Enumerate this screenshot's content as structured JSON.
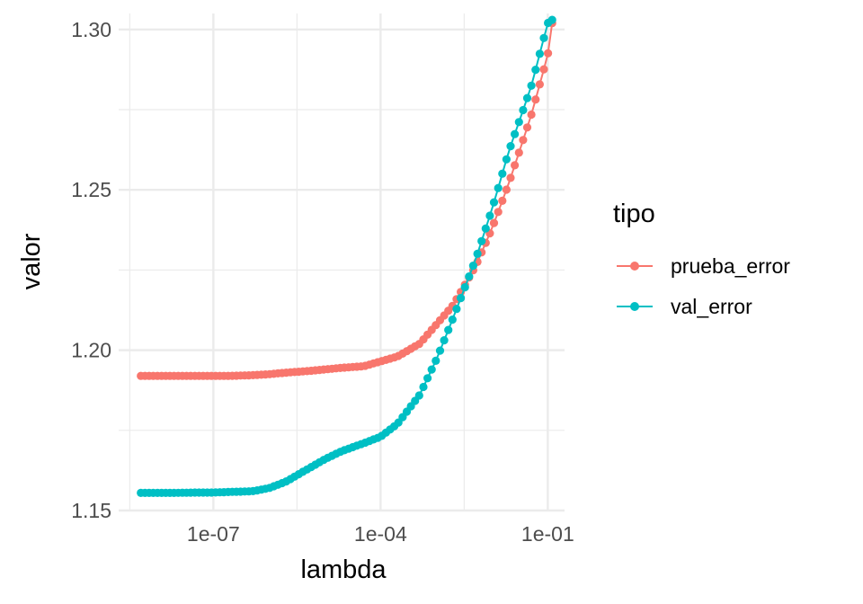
{
  "chart_data": {
    "type": "line",
    "title": "",
    "xlabel": "lambda",
    "ylabel": "valor",
    "x_scale": "log10",
    "xlim": [
      2e-09,
      0.2
    ],
    "ylim": [
      1.15,
      1.305
    ],
    "x_ticks": [
      1e-07,
      0.0001,
      0.1
    ],
    "x_tick_labels": [
      "1e-07",
      "1e-04",
      "1e-01"
    ],
    "y_ticks": [
      1.15,
      1.2,
      1.25,
      1.3
    ],
    "y_tick_labels": [
      "1.15",
      "1.20",
      "1.25",
      "1.30"
    ],
    "grid": true,
    "legend": {
      "title": "tipo",
      "position": "right"
    },
    "x": [
      5e-09,
      1e-08,
      2e-08,
      5e-08,
      1e-07,
      2e-07,
      5e-07,
      1e-06,
      2e-06,
      5e-06,
      1e-05,
      2e-05,
      5e-05,
      0.0001,
      0.0002,
      0.0005,
      0.001,
      0.002,
      0.005,
      0.01,
      0.02,
      0.05,
      0.1,
      0.12
    ],
    "series": [
      {
        "name": "prueba_error",
        "color": "#F8766D",
        "values": [
          1.192,
          1.192,
          1.192,
          1.192,
          1.192,
          1.192,
          1.1922,
          1.1925,
          1.193,
          1.1935,
          1.194,
          1.1945,
          1.195,
          1.1965,
          1.198,
          1.202,
          1.208,
          1.214,
          1.226,
          1.238,
          1.252,
          1.273,
          1.292,
          1.302
        ]
      },
      {
        "name": "val_error",
        "color": "#00BFC4",
        "values": [
          1.1555,
          1.1555,
          1.1555,
          1.1556,
          1.1556,
          1.1558,
          1.156,
          1.157,
          1.159,
          1.163,
          1.166,
          1.1685,
          1.171,
          1.173,
          1.177,
          1.186,
          1.197,
          1.21,
          1.228,
          1.244,
          1.262,
          1.282,
          1.302,
          1.303
        ]
      }
    ]
  }
}
